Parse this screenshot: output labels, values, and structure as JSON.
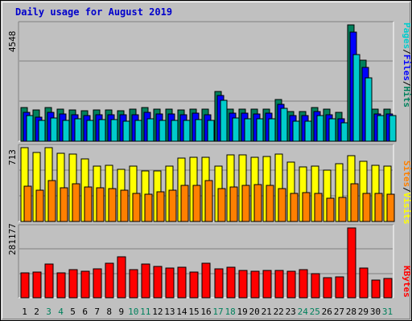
{
  "chart_data": {
    "type": "bar",
    "title": "Daily usage for August 2019",
    "categories": [
      "1",
      "2",
      "3",
      "4",
      "5",
      "6",
      "7",
      "8",
      "9",
      "10",
      "11",
      "12",
      "13",
      "14",
      "15",
      "16",
      "17",
      "18",
      "19",
      "20",
      "21",
      "22",
      "23",
      "24",
      "25",
      "26",
      "27",
      "28",
      "29",
      "30",
      "31"
    ],
    "weekend_days": [
      "3",
      "4",
      "10",
      "11",
      "17",
      "18",
      "24",
      "25",
      "31"
    ],
    "colors": {
      "hits": "#00cccc",
      "files": "#0000ff",
      "pages": "#00805c",
      "visits": "#ffff00",
      "sites": "#ff8000",
      "kbytes": "#ff0000",
      "weekday_label": "#000000",
      "weekend_label": "#00805c",
      "title": "#0000cc"
    },
    "panels": [
      {
        "name": "pages-files-hits",
        "ymax": 4548,
        "ymax_label": "4548",
        "legend": [
          {
            "text": "Pages",
            "color": "#00cccc"
          },
          {
            "text": "/",
            "color": "#000000"
          },
          {
            "text": "Files",
            "color": "#0000ff"
          },
          {
            "text": "/",
            "color": "#000000"
          },
          {
            "text": "Hits",
            "color": "#00805c"
          }
        ],
        "series": [
          {
            "name": "Hits",
            "color": "#00805c",
            "values": [
              1320,
              1230,
              1310,
              1270,
              1230,
              1190,
              1230,
              1230,
              1200,
              1250,
              1320,
              1270,
              1250,
              1230,
              1270,
              1240,
              1940,
              1270,
              1270,
              1260,
              1260,
              1630,
              1170,
              1170,
              1330,
              1240,
              1120,
              4548,
              3160,
              1250,
              1250
            ]
          },
          {
            "name": "Files",
            "color": "#0000ff",
            "values": [
              1140,
              950,
              1130,
              1070,
              1050,
              1000,
              1030,
              1040,
              1020,
              1050,
              1140,
              1060,
              1070,
              1040,
              1090,
              1030,
              1780,
              1100,
              1090,
              1080,
              1090,
              1440,
              990,
              1000,
              1170,
              1050,
              870,
              4260,
              2880,
              1080,
              1060
            ]
          },
          {
            "name": "Pages",
            "color": "#00cccc",
            "values": [
              1000,
              810,
              900,
              830,
              880,
              830,
              850,
              850,
              780,
              830,
              870,
              830,
              830,
              830,
              850,
              820,
              1600,
              900,
              880,
              870,
              870,
              1290,
              790,
              780,
              1000,
              880,
              720,
              3380,
              2490,
              1000,
              1000
            ]
          }
        ]
      },
      {
        "name": "sites-visits",
        "ymax": 713,
        "ymax_label": "713",
        "legend": [
          {
            "text": "Sites",
            "color": "#ff8000"
          },
          {
            "text": "/",
            "color": "#000000"
          },
          {
            "text": "Visits",
            "color": "#ffff00"
          }
        ],
        "series": [
          {
            "name": "Visits",
            "color": "#ffff00",
            "values": [
              713,
              664,
              713,
              657,
              648,
              605,
              537,
              545,
              506,
              538,
              485,
              489,
              536,
              611,
              621,
              620,
              532,
              644,
              642,
              618,
              625,
              652,
              577,
              525,
              533,
              497,
              559,
              639,
              579,
              544,
              534
            ]
          },
          {
            "name": "Sites",
            "color": "#ff8000",
            "values": [
              340,
              306,
              392,
              324,
              368,
              330,
              325,
              318,
              306,
              269,
              266,
              285,
              302,
              352,
              349,
              392,
              319,
              330,
              350,
              354,
              346,
              318,
              275,
              282,
              270,
              228,
              236,
              362,
              269,
              269,
              262
            ]
          }
        ]
      },
      {
        "name": "kbytes",
        "ymax": 281177,
        "ymax_label": "281177",
        "legend": [
          {
            "text": "KBytes",
            "color": "#ff0000"
          }
        ],
        "series": [
          {
            "name": "KBytes",
            "color": "#ff0000",
            "values": [
              99800,
              104500,
              137000,
              101500,
              113200,
              105400,
              116000,
              139300,
              163800,
              113600,
              137000,
              124500,
              120600,
              121300,
              103300,
              139300,
              115200,
              123700,
              110800,
              106100,
              108600,
              109300,
              106900,
              113200,
              96300,
              79200,
              85500,
              281177,
              120600,
              71700,
              78500
            ]
          }
        ]
      }
    ]
  }
}
